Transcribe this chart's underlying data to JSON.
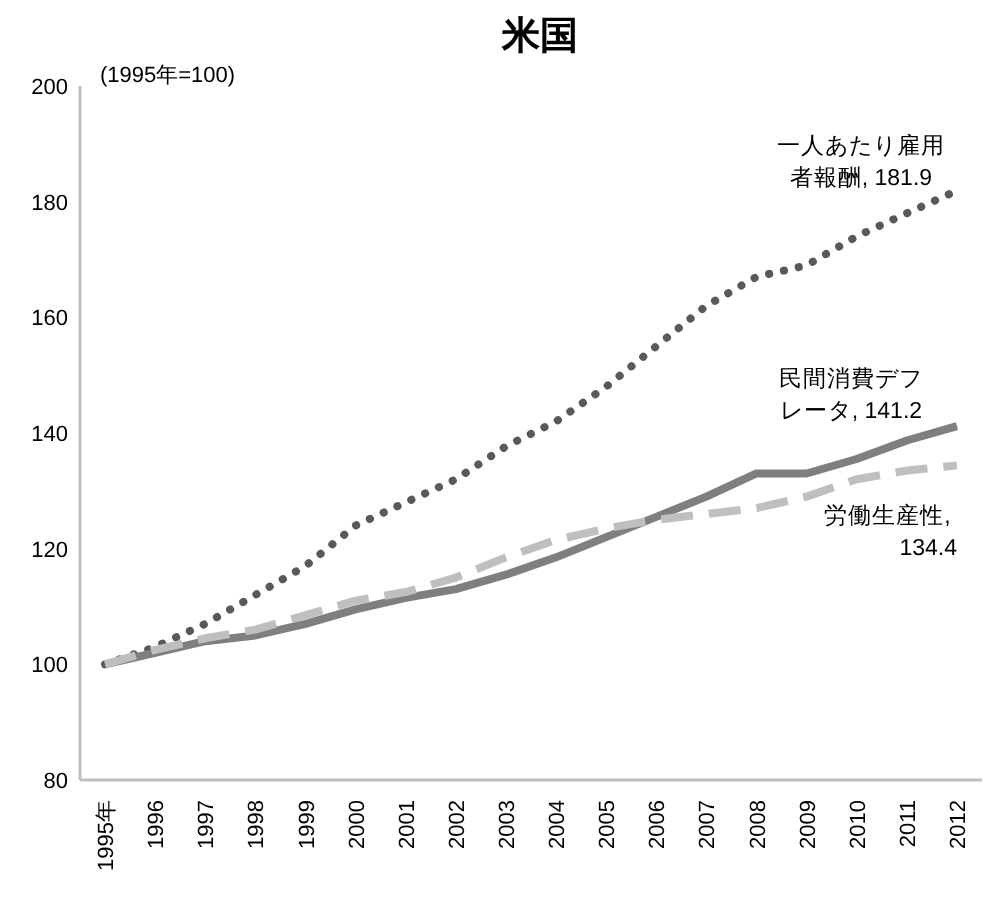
{
  "chart_data": {
    "type": "line",
    "title": "米国",
    "ylabel": "(1995年=100)",
    "categories": [
      "1995年",
      "1996",
      "1997",
      "1998",
      "1999",
      "2000",
      "2001",
      "2002",
      "2003",
      "2004",
      "2005",
      "2006",
      "2007",
      "2008",
      "2009",
      "2010",
      "2011",
      "2012"
    ],
    "ylim": [
      80,
      200
    ],
    "yticks": [
      80,
      100,
      120,
      140,
      160,
      180,
      200
    ],
    "series": [
      {
        "color": "#595959",
        "line_style": "dotted",
        "values": [
          100,
          103,
          107,
          112,
          117,
          124,
          128,
          132,
          137.7,
          142,
          148,
          155,
          162,
          167,
          169,
          174,
          178,
          181.9
        ]
      },
      {
        "color": "#7f7f7f",
        "line_style": "solid",
        "values": [
          100,
          102,
          104,
          105,
          107,
          109.5,
          111.5,
          113,
          115.5,
          118.5,
          122,
          125.5,
          129,
          133,
          133,
          135.5,
          138.7,
          141.2
        ]
      },
      {
        "color": "#bfbfbf",
        "line_style": "dashed",
        "values": [
          100,
          102.5,
          104.5,
          106,
          108.5,
          111,
          112.5,
          115,
          118.5,
          121.5,
          123.5,
          125,
          126,
          127,
          129,
          132,
          133.5,
          134.4
        ]
      }
    ],
    "annotations": [
      {
        "text": "一人あたり雇用者報酬, 181.9",
        "x": "2012",
        "y": 181.9
      },
      {
        "text": "民間消費デフレータ, 141.2",
        "x": "2012",
        "y": 141.2
      },
      {
        "text": "労働生産性, 134.4",
        "x": "2012",
        "y": 134.4
      }
    ]
  }
}
